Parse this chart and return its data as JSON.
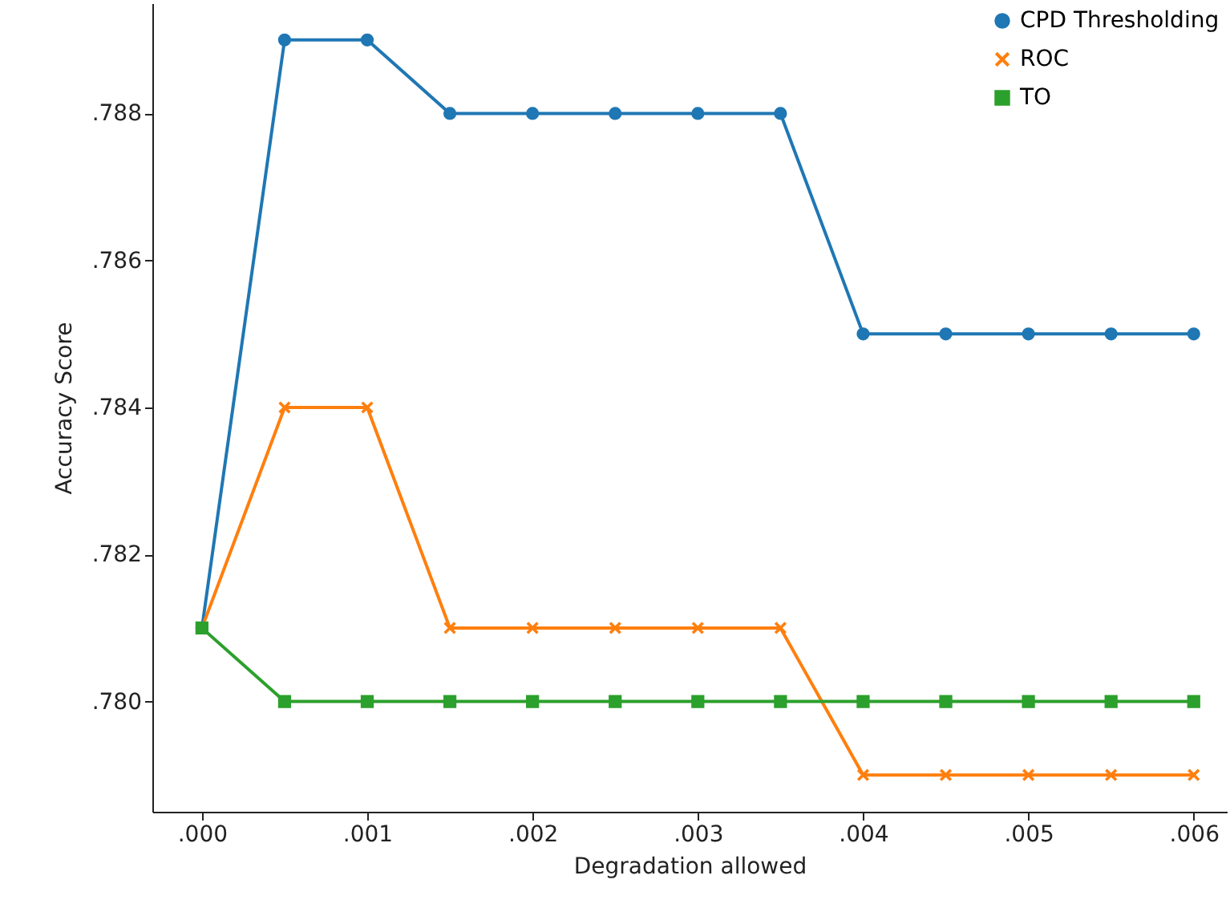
{
  "chart_data": {
    "type": "line",
    "xlabel": "Degradation allowed",
    "ylabel": "Accuracy Score",
    "x": [
      0,
      0.0005,
      0.001,
      0.0015,
      0.002,
      0.0025,
      0.003,
      0.0035,
      0.004,
      0.0045,
      0.005,
      0.0055,
      0.006
    ],
    "series": [
      {
        "name": "CPD Thresholding",
        "color": "#1f77b4",
        "marker": "circle",
        "values": [
          0.781,
          0.789,
          0.789,
          0.788,
          0.788,
          0.788,
          0.788,
          0.788,
          0.785,
          0.785,
          0.785,
          0.785,
          0.785
        ]
      },
      {
        "name": "ROC",
        "color": "#ff7f0e",
        "marker": "cross",
        "values": [
          0.781,
          0.784,
          0.784,
          0.781,
          0.781,
          0.781,
          0.781,
          0.781,
          0.779,
          0.779,
          0.779,
          0.779,
          0.779
        ]
      },
      {
        "name": "TO",
        "color": "#2ca02c",
        "marker": "square",
        "values": [
          0.781,
          0.78,
          0.78,
          0.78,
          0.78,
          0.78,
          0.78,
          0.78,
          0.78,
          0.78,
          0.78,
          0.78,
          0.78
        ]
      }
    ],
    "xlim": [
      -0.0003,
      0.0062
    ],
    "ylim": [
      0.7785,
      0.7895
    ],
    "xticks": [
      {
        "value": 0,
        "label": ".000"
      },
      {
        "value": 0.001,
        "label": ".001"
      },
      {
        "value": 0.002,
        "label": ".002"
      },
      {
        "value": 0.003,
        "label": ".003"
      },
      {
        "value": 0.004,
        "label": ".004"
      },
      {
        "value": 0.005,
        "label": ".005"
      },
      {
        "value": 0.006,
        "label": ".006"
      }
    ],
    "yticks": [
      {
        "value": 0.78,
        "label": ".780"
      },
      {
        "value": 0.782,
        "label": ".782"
      },
      {
        "value": 0.784,
        "label": ".784"
      },
      {
        "value": 0.786,
        "label": ".786"
      },
      {
        "value": 0.788,
        "label": ".788"
      }
    ],
    "legend": "top right",
    "grid": false,
    "line_style": "solid"
  }
}
